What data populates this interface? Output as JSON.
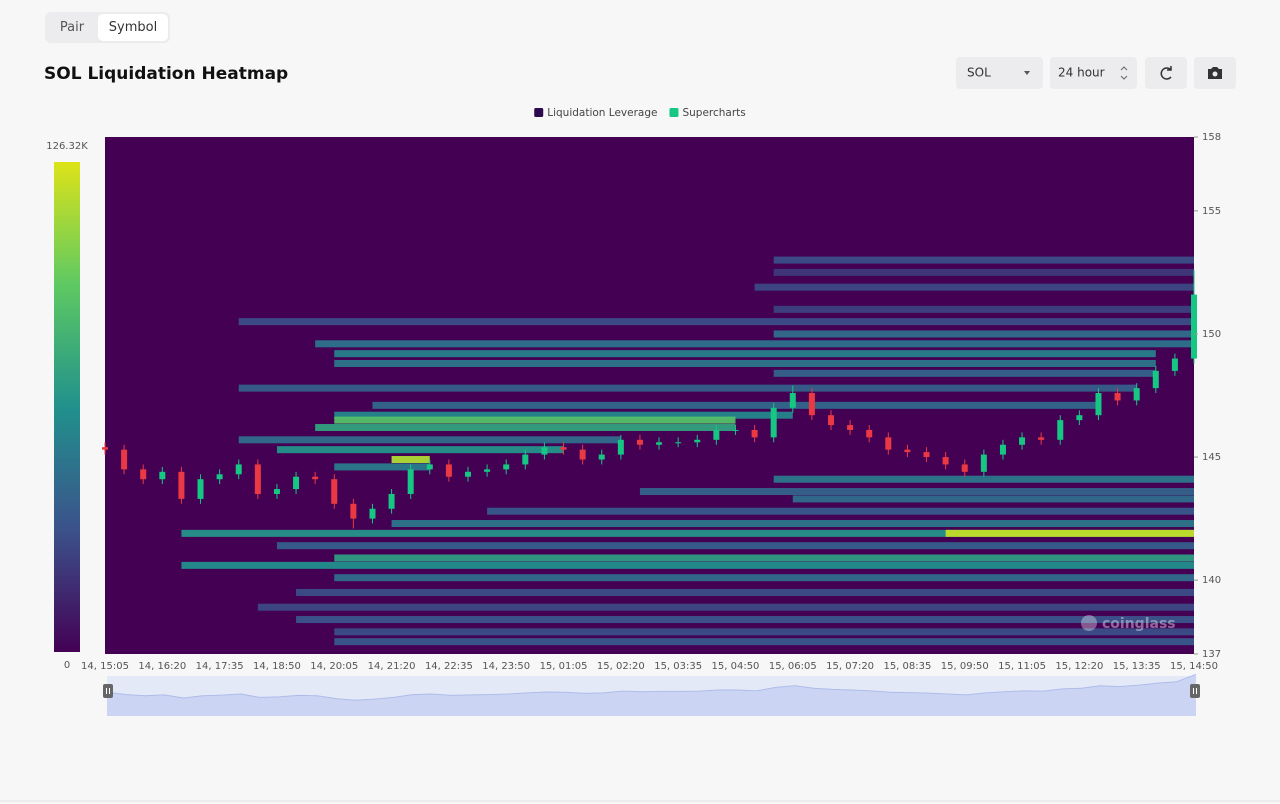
{
  "tabs": [
    "Pair",
    "Symbol"
  ],
  "controls": {
    "symbol": "SOL",
    "interval": "24 hour"
  },
  "chart_data": {
    "type": "heatmap",
    "title": "SOL Liquidation Heatmap",
    "legend": [
      {
        "name": "Liquidation Leverage",
        "color": "#2d0a4e"
      },
      {
        "name": "Supercharts",
        "color": "#16c784"
      }
    ],
    "categories": [
      "14, 15:05",
      null,
      null,
      "14, 16:20",
      null,
      null,
      "14, 17:35",
      null,
      null,
      "14, 18:50",
      null,
      null,
      "14, 20:05",
      null,
      null,
      "14, 21:20",
      null,
      null,
      "14, 22:35",
      null,
      null,
      "14, 23:50",
      null,
      null,
      "15, 01:05",
      null,
      null,
      "15, 02:20",
      null,
      null,
      "15, 03:35",
      null,
      null,
      "15, 04:50",
      null,
      null,
      "15, 06:05",
      null,
      null,
      "15, 07:20",
      null,
      null,
      "15, 08:35",
      null,
      null,
      "15, 09:50",
      null,
      null,
      "15, 11:05",
      null,
      null,
      "15, 12:20",
      null,
      null,
      "15, 13:35",
      null,
      null,
      "15, 14:50"
    ],
    "ylim": [
      137,
      158
    ],
    "yticks": [
      137,
      140,
      145,
      150,
      155,
      158
    ],
    "colorlim": [
      0,
      126320
    ],
    "colorticks": [
      0,
      {
        "value": 126320,
        "label": "126.32K"
      }
    ],
    "colorscale": [
      "#440154",
      "#3b528b",
      "#21918c",
      "#5ec962",
      "#dde318"
    ],
    "up_color": "#16c784",
    "down_color": "#ea3943",
    "candles": {
      "open": [
        145.4,
        145.3,
        144.5,
        144.1,
        144.4,
        143.3,
        144.1,
        144.3,
        144.7,
        143.5,
        143.7,
        144.2,
        144.1,
        143.1,
        142.5,
        142.9,
        143.5,
        144.5,
        144.7,
        144.2,
        144.4,
        144.5,
        144.7,
        145.1,
        145.4,
        145.3,
        144.9,
        145.1,
        145.7,
        145.5,
        145.6,
        145.6,
        145.7,
        146.1,
        146.1,
        145.8,
        147.0,
        147.6,
        146.7,
        146.3,
        146.1,
        145.8,
        145.3,
        145.2,
        145.0,
        144.7,
        144.4,
        145.1,
        145.5,
        145.8,
        145.7,
        146.5,
        146.7,
        147.6,
        147.3,
        147.8,
        148.5,
        149.0
      ],
      "high": [
        145.6,
        145.5,
        144.7,
        144.6,
        144.6,
        144.3,
        144.5,
        144.9,
        144.9,
        143.9,
        144.4,
        144.4,
        144.3,
        143.3,
        143.1,
        143.7,
        144.7,
        144.9,
        144.9,
        144.6,
        144.7,
        144.9,
        145.3,
        145.6,
        145.6,
        145.5,
        145.3,
        145.9,
        145.9,
        145.8,
        145.8,
        145.9,
        146.3,
        146.3,
        146.3,
        147.2,
        147.9,
        147.8,
        146.9,
        146.5,
        146.3,
        146.0,
        145.5,
        145.4,
        145.2,
        144.9,
        145.3,
        145.7,
        146.0,
        146.0,
        146.7,
        146.9,
        147.8,
        147.8,
        148.0,
        148.7,
        149.2,
        152.6
      ],
      "low": [
        145.1,
        144.3,
        143.9,
        143.9,
        143.1,
        143.1,
        143.9,
        144.1,
        143.3,
        143.3,
        143.5,
        143.9,
        142.9,
        142.1,
        142.3,
        142.7,
        143.3,
        144.3,
        144.0,
        144.0,
        144.2,
        144.3,
        144.5,
        144.9,
        145.1,
        144.7,
        144.7,
        144.9,
        145.3,
        145.3,
        145.4,
        145.4,
        145.5,
        145.9,
        145.6,
        145.6,
        146.8,
        146.5,
        146.1,
        145.9,
        145.6,
        145.1,
        145.0,
        144.8,
        144.5,
        144.2,
        144.2,
        144.9,
        145.3,
        145.5,
        145.5,
        146.3,
        146.5,
        147.1,
        147.1,
        147.6,
        148.3,
        148.8
      ],
      "close": [
        145.3,
        144.5,
        144.1,
        144.4,
        143.3,
        144.1,
        144.3,
        144.7,
        143.5,
        143.7,
        144.2,
        144.1,
        143.1,
        142.5,
        142.9,
        143.5,
        144.5,
        144.7,
        144.2,
        144.4,
        144.5,
        144.7,
        145.1,
        145.4,
        145.3,
        144.9,
        145.1,
        145.7,
        145.5,
        145.6,
        145.6,
        145.7,
        146.1,
        146.1,
        145.8,
        147.0,
        147.6,
        146.7,
        146.3,
        146.1,
        145.8,
        145.3,
        145.2,
        145.0,
        144.7,
        144.4,
        145.1,
        145.5,
        145.8,
        145.7,
        146.5,
        146.7,
        147.6,
        147.3,
        147.8,
        148.5,
        149.0,
        151.6
      ]
    },
    "heatmap": [
      {
        "price": 153.0,
        "start": 35,
        "end": 57,
        "value": 30000
      },
      {
        "price": 152.5,
        "start": 35,
        "end": 57,
        "value": 22000
      },
      {
        "price": 151.9,
        "start": 34,
        "end": 57,
        "value": 28000
      },
      {
        "price": 151.0,
        "start": 35,
        "end": 57,
        "value": 25000
      },
      {
        "price": 150.5,
        "start": 7,
        "end": 57,
        "value": 30000
      },
      {
        "price": 150.0,
        "start": 35,
        "end": 57,
        "value": 45000
      },
      {
        "price": 149.6,
        "start": 11,
        "end": 57,
        "value": 48000
      },
      {
        "price": 149.2,
        "start": 12,
        "end": 55,
        "value": 55000
      },
      {
        "price": 148.8,
        "start": 12,
        "end": 55,
        "value": 50000
      },
      {
        "price": 148.4,
        "start": 35,
        "end": 55,
        "value": 40000
      },
      {
        "price": 147.8,
        "start": 7,
        "end": 54,
        "value": 38000
      },
      {
        "price": 147.1,
        "start": 14,
        "end": 52,
        "value": 42000
      },
      {
        "price": 146.7,
        "start": 12,
        "end": 36,
        "value": 58000
      },
      {
        "price": 146.5,
        "start": 12,
        "end": 33,
        "value": 90000
      },
      {
        "price": 146.2,
        "start": 11,
        "end": 33,
        "value": 72000
      },
      {
        "price": 145.7,
        "start": 7,
        "end": 27,
        "value": 45000
      },
      {
        "price": 145.3,
        "start": 9,
        "end": 24,
        "value": 65000
      },
      {
        "price": 144.9,
        "start": 15,
        "end": 17,
        "value": 115000
      },
      {
        "price": 144.6,
        "start": 12,
        "end": 17,
        "value": 52000
      },
      {
        "price": 144.1,
        "start": 35,
        "end": 57,
        "value": 50000
      },
      {
        "price": 143.6,
        "start": 28,
        "end": 57,
        "value": 40000
      },
      {
        "price": 143.3,
        "start": 36,
        "end": 57,
        "value": 45000
      },
      {
        "price": 142.8,
        "start": 20,
        "end": 57,
        "value": 35000
      },
      {
        "price": 142.3,
        "start": 15,
        "end": 57,
        "value": 50000
      },
      {
        "price": 141.9,
        "start": 4,
        "end": 57,
        "value": 65000
      },
      {
        "price": 141.9,
        "start": 44,
        "end": 57,
        "value": 120000
      },
      {
        "price": 141.4,
        "start": 9,
        "end": 57,
        "value": 38000
      },
      {
        "price": 140.9,
        "start": 12,
        "end": 57,
        "value": 70000
      },
      {
        "price": 140.6,
        "start": 4,
        "end": 57,
        "value": 62000
      },
      {
        "price": 140.1,
        "start": 12,
        "end": 57,
        "value": 45000
      },
      {
        "price": 139.5,
        "start": 10,
        "end": 57,
        "value": 30000
      },
      {
        "price": 138.9,
        "start": 8,
        "end": 57,
        "value": 28000
      },
      {
        "price": 138.4,
        "start": 10,
        "end": 57,
        "value": 32000
      },
      {
        "price": 137.9,
        "start": 12,
        "end": 57,
        "value": 30000
      },
      {
        "price": 137.5,
        "start": 12,
        "end": 57,
        "value": 35000
      }
    ],
    "watermark": "coinglass"
  }
}
